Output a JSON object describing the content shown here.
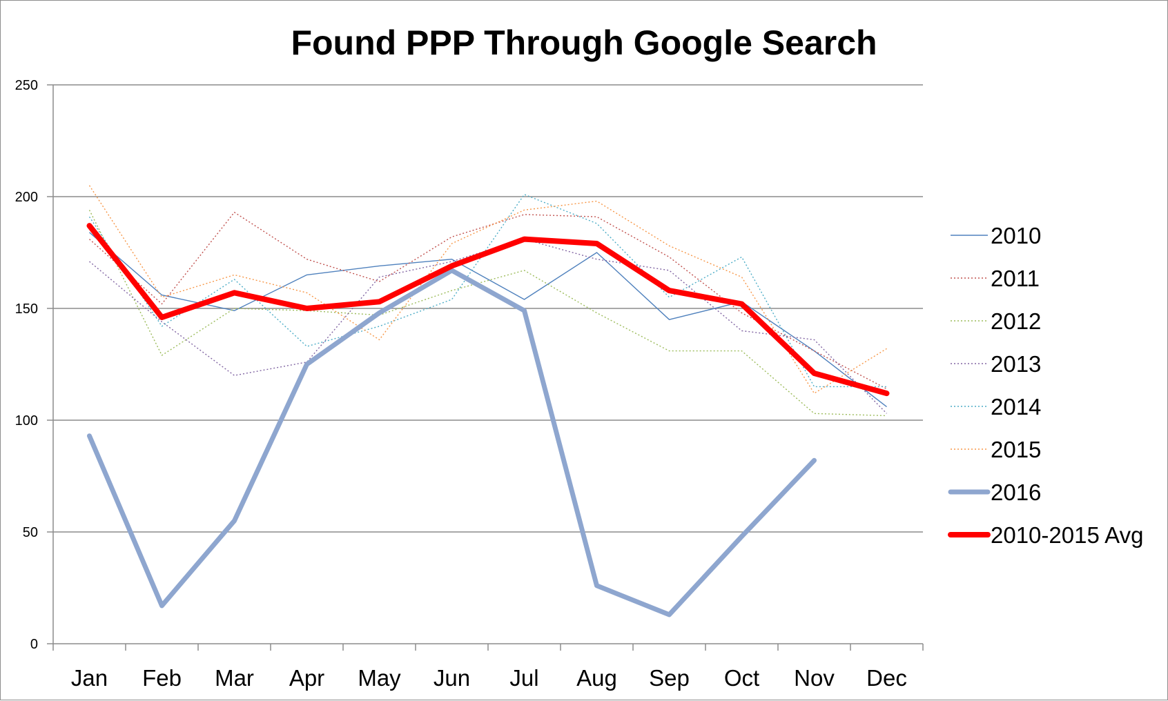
{
  "chart_data": {
    "type": "line",
    "title": "Found PPP Through Google Search",
    "xlabel": "",
    "ylabel": "",
    "ylim": [
      0,
      250
    ],
    "yticks": [
      0,
      50,
      100,
      150,
      200,
      250
    ],
    "grid": true,
    "legend_position": "right",
    "categories": [
      "Jan",
      "Feb",
      "Mar",
      "Apr",
      "May",
      "Jun",
      "Jul",
      "Aug",
      "Sep",
      "Oct",
      "Nov",
      "Dec"
    ],
    "series": [
      {
        "name": "2010",
        "color": "#4f81bd",
        "style": "solid-thin",
        "values": [
          184,
          156,
          149,
          165,
          169,
          172,
          154,
          175,
          145,
          153,
          131,
          106
        ]
      },
      {
        "name": "2011",
        "color": "#c0504d",
        "style": "dotted",
        "values": [
          181,
          152,
          193,
          172,
          162,
          182,
          192,
          191,
          173,
          148,
          131,
          114
        ]
      },
      {
        "name": "2012",
        "color": "#9bbb59",
        "style": "dotted",
        "values": [
          194,
          129,
          150,
          149,
          147,
          158,
          167,
          148,
          131,
          131,
          103,
          102
        ]
      },
      {
        "name": "2013",
        "color": "#8064a2",
        "style": "dotted",
        "values": [
          171,
          144,
          120,
          126,
          164,
          171,
          181,
          172,
          167,
          140,
          136,
          103
        ]
      },
      {
        "name": "2014",
        "color": "#4bacc6",
        "style": "dotted",
        "values": [
          191,
          142,
          163,
          133,
          142,
          154,
          201,
          188,
          155,
          173,
          115,
          115
        ]
      },
      {
        "name": "2015",
        "color": "#f79646",
        "style": "dotted",
        "values": [
          205,
          155,
          165,
          157,
          136,
          179,
          194,
          198,
          178,
          164,
          112,
          132
        ]
      },
      {
        "name": "2016",
        "color": "#8ea6cf",
        "style": "thick",
        "values": [
          93,
          17,
          55,
          125,
          148,
          167,
          149,
          26,
          13,
          48,
          82,
          null
        ]
      },
      {
        "name": "2010-2015 Avg",
        "color": "#ff0000",
        "style": "thick",
        "values": [
          187,
          146,
          157,
          150,
          153,
          169,
          181,
          179,
          158,
          152,
          121,
          112
        ]
      }
    ]
  }
}
